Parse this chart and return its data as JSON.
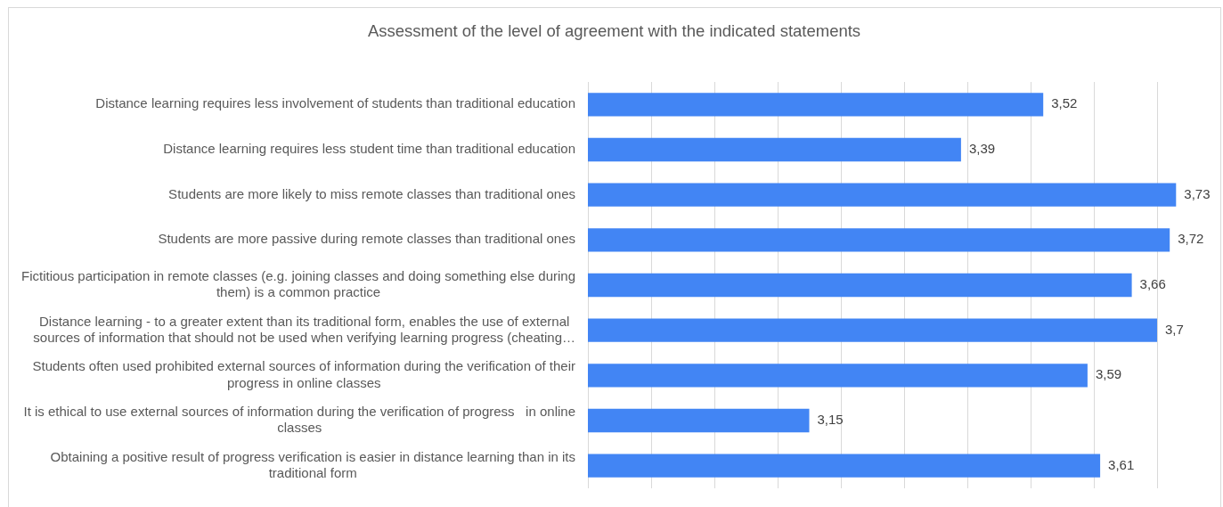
{
  "chart_data": {
    "type": "bar",
    "orientation": "horizontal",
    "title": "Assessment of the level of agreement with the indicated statements",
    "categories": [
      "Distance learning requires less involvement of students than traditional education",
      "Distance learning requires less student time than traditional education",
      "Students are more likely to miss remote classes than traditional ones",
      "Students are more passive during remote classes than traditional ones",
      "Fictitious participation in remote classes (e.g. joining classes and doing something else during them) is a common practice",
      "Distance learning - to a greater extent than its traditional form, enables the use of external sources of information that should not be used when verifying learning progress (cheating…",
      "Students often used prohibited external sources of information during the verification of their progress in online classes",
      "It is ethical to use external sources of information during the verification of progress   in online classes",
      "Obtaining a positive result of progress verification is easier in distance learning than in its traditional form"
    ],
    "values": [
      3.52,
      3.39,
      3.73,
      3.72,
      3.66,
      3.7,
      3.59,
      3.15,
      3.61
    ],
    "value_labels": [
      "3,52",
      "3,39",
      "3,73",
      "3,72",
      "3,66",
      "3,7",
      "3,59",
      "3,15",
      "3,61"
    ],
    "color": "#4285f4",
    "xlim": [
      2.8,
      3.8
    ],
    "xticks": [
      {
        "value": 2.8,
        "label": null
      },
      {
        "value": 2.9,
        "label": null
      },
      {
        "value": 3.0,
        "label": null
      },
      {
        "value": 3.1,
        "label": null
      },
      {
        "value": 3.2,
        "label": null
      },
      {
        "value": 3.3,
        "label": null
      },
      {
        "value": 3.4,
        "label": null
      },
      {
        "value": 3.5,
        "label": null
      },
      {
        "value": 3.6,
        "label": null
      },
      {
        "value": 3.7,
        "label": null
      }
    ],
    "grid": "x",
    "tick_labels": "y"
  }
}
